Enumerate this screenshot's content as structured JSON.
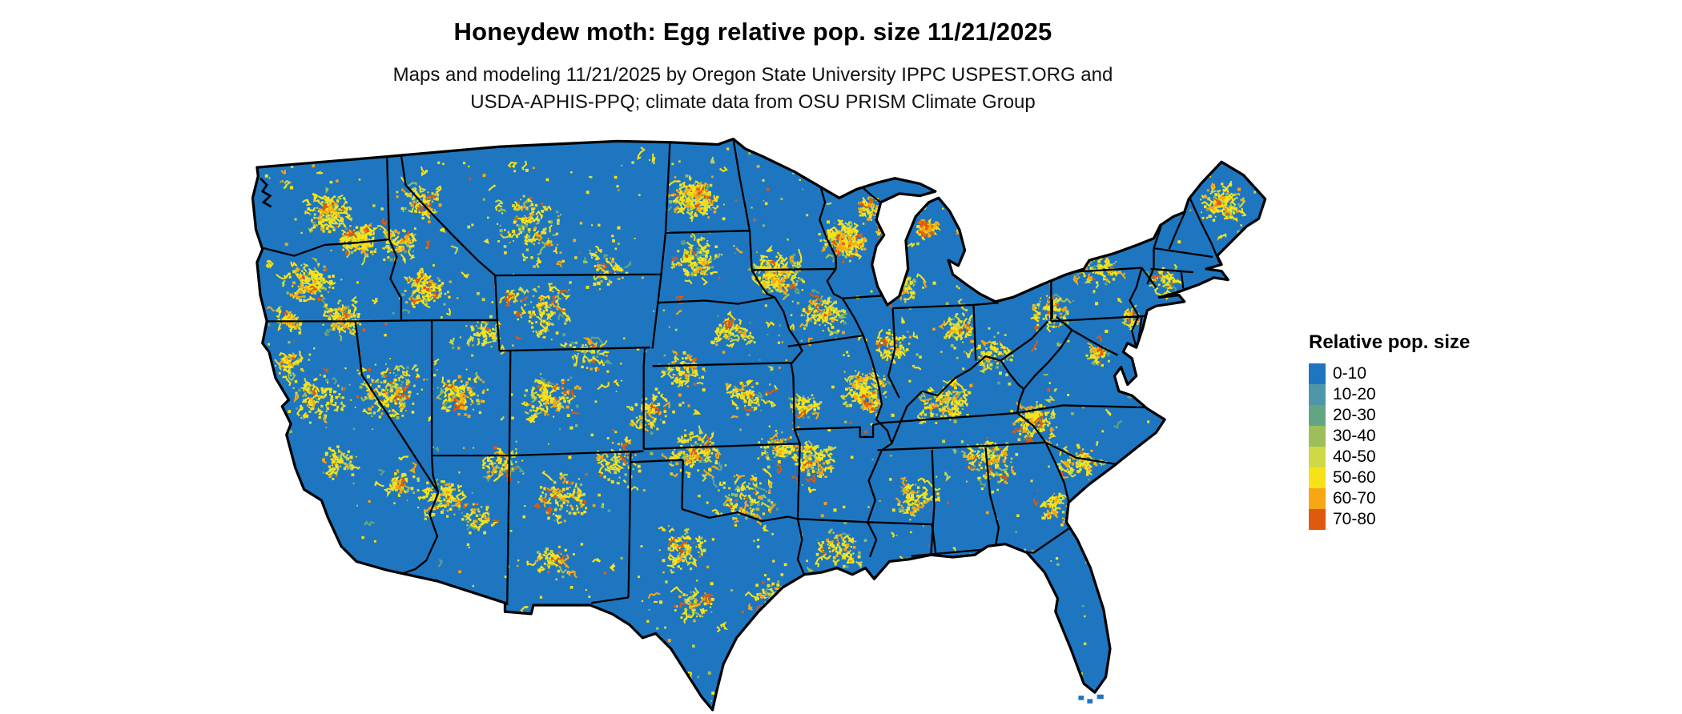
{
  "header": {
    "title": "Honeydew moth: Egg relative pop. size 11/21/2025",
    "subtitle_line1": "Maps and modeling 11/21/2025 by Oregon State University IPPC USPEST.ORG and",
    "subtitle_line2": "USDA-APHIS-PPQ; climate data from OSU PRISM Climate Group"
  },
  "legend": {
    "title": "Relative pop. size",
    "items": [
      {
        "label": "0-10",
        "color": "#1E76C0"
      },
      {
        "label": "10-20",
        "color": "#4D97A9"
      },
      {
        "label": "20-30",
        "color": "#63A583"
      },
      {
        "label": "30-40",
        "color": "#9CBF59"
      },
      {
        "label": "40-50",
        "color": "#CDD945"
      },
      {
        "label": "50-60",
        "color": "#F7E219"
      },
      {
        "label": "60-70",
        "color": "#F7A713"
      },
      {
        "label": "70-80",
        "color": "#DF5A0E"
      }
    ]
  },
  "map": {
    "region": "contiguous-united-states",
    "base_color": "#1E76C0",
    "border_color": "#000000",
    "background_color": "#FFFFFF"
  }
}
